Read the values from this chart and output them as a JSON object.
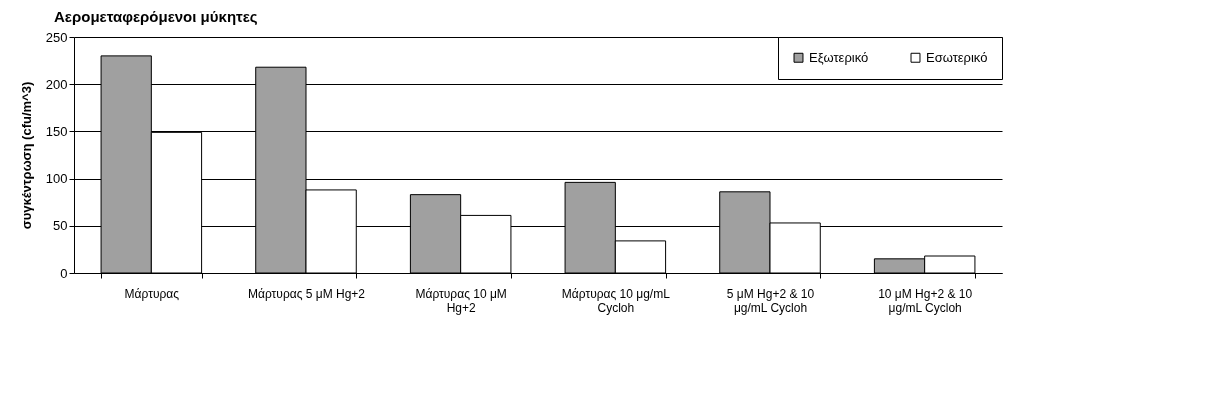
{
  "chart_data": {
    "type": "bar",
    "title": "Αερομεταφερόμενοι μύκητες",
    "ylabel": "συγκέντρωση (cfu/m^3)",
    "categories": [
      "Μάρτυρας",
      "Μάρτυρας 5 μM Hg+2",
      "Μάρτυρας 10 μM Hg+2",
      "Μάρτυρας 10 μg/mL Cycloh",
      "5 μM Hg+2 & 10 μg/mL Cycloh",
      "10 μM Hg+2 & 10 μg/mL Cycloh"
    ],
    "series": [
      {
        "name": "Εξωτερικό",
        "color": "#a0a0a0",
        "values": [
          230,
          218,
          83,
          96,
          86,
          15
        ]
      },
      {
        "name": "Εσωτερικό",
        "color": "#ffffff",
        "values": [
          149,
          88,
          61,
          34,
          53,
          18
        ]
      }
    ],
    "ylim": [
      0,
      250
    ],
    "yticks": [
      0,
      50,
      100,
      150,
      200,
      250
    ],
    "grid": "y",
    "legend": "top right"
  }
}
